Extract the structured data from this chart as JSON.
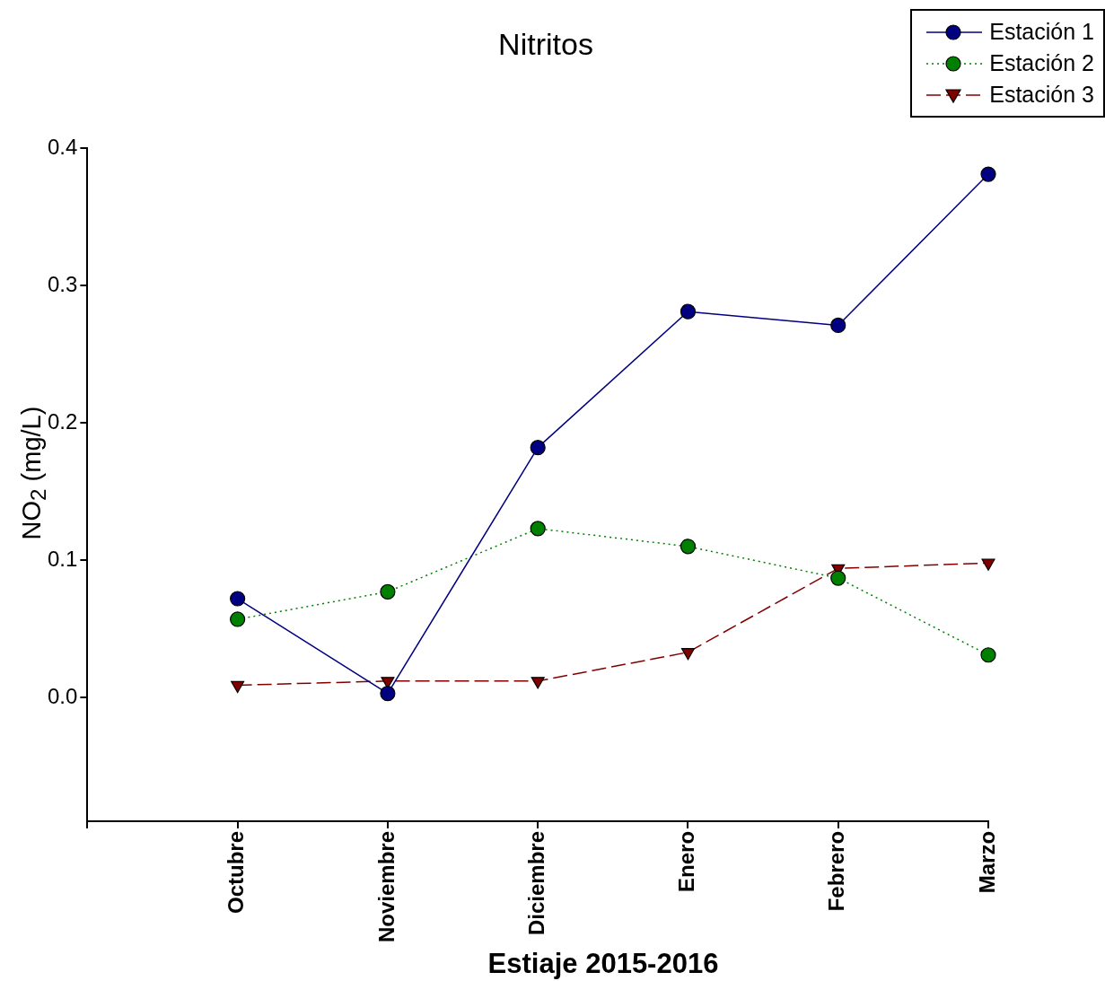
{
  "chart_data": {
    "type": "line",
    "title": "Nitritos",
    "xlabel": "Estiaje 2015-2016",
    "ylabel": "NO$_{2}$ (mg/L)",
    "categories": [
      null,
      "Octubre",
      "Noviembre",
      "Diciembre",
      "Enero",
      "Febrero",
      "Marzo"
    ],
    "series": [
      {
        "name": "Estación 1",
        "color": "#000080",
        "marker": "circle",
        "line_style": "solid",
        "values": [
          null,
          0.072,
          0.003,
          0.182,
          0.281,
          0.271,
          0.381
        ]
      },
      {
        "name": "Estación 2",
        "color": "#008000",
        "marker": "circle",
        "line_style": "dotted",
        "values": [
          null,
          0.057,
          0.077,
          0.123,
          0.11,
          0.087,
          0.031
        ]
      },
      {
        "name": "Estación 3",
        "color": "#800000",
        "marker": "triangle",
        "line_style": "dashed",
        "values": [
          null,
          0.009,
          0.012,
          0.012,
          0.033,
          0.094,
          0.098
        ]
      }
    ],
    "ylim": [
      -0.09,
      0.4
    ],
    "yticks": [
      {
        "value": 0,
        "label": "0.0"
      },
      0.1,
      0.2,
      0.3,
      0.4
    ],
    "grid": false,
    "legend": "top right"
  }
}
